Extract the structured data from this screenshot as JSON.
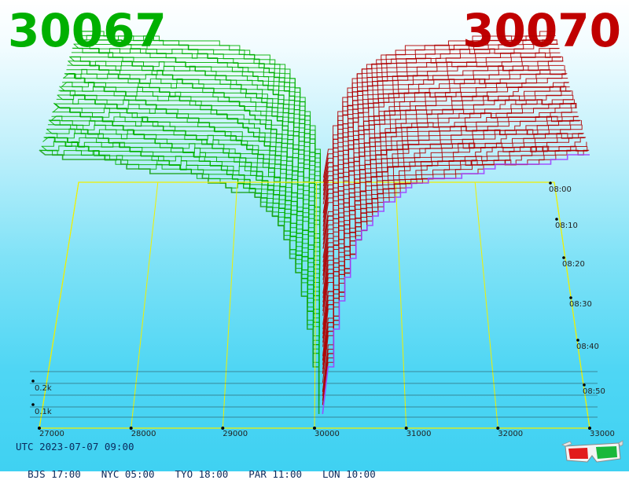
{
  "header": {
    "bid_price": "30067",
    "ask_price": "30070",
    "bid_color": "#00b000",
    "ask_color": "#c00000"
  },
  "footer": {
    "utc": "UTC 2023-07-07 09:00",
    "zones": [
      "BJS 17:00",
      "NYC 05:00",
      "TYO 18:00",
      "PAR 11:00",
      "LON 10:00"
    ]
  },
  "icons": {
    "glasses": "3d-glasses-icon"
  },
  "chart_data": {
    "type": "3d-depth",
    "price_ticks": [
      "27000",
      "28000",
      "29000",
      "30000",
      "31000",
      "32000",
      "33000"
    ],
    "volume_ticks": [
      "0.1k",
      "0.2k"
    ],
    "time_ticks": [
      "08:00",
      "08:10",
      "08:20",
      "08:30",
      "08:40",
      "08:50"
    ],
    "xlim": [
      27000,
      33000
    ],
    "mid_price": 30068,
    "bid_color": "#00b000",
    "ask_color": "#b00000",
    "latest_bid_color": "#1fa31f",
    "latest_ask_color": "#a040ff",
    "grid_color": "#f0f000"
  }
}
